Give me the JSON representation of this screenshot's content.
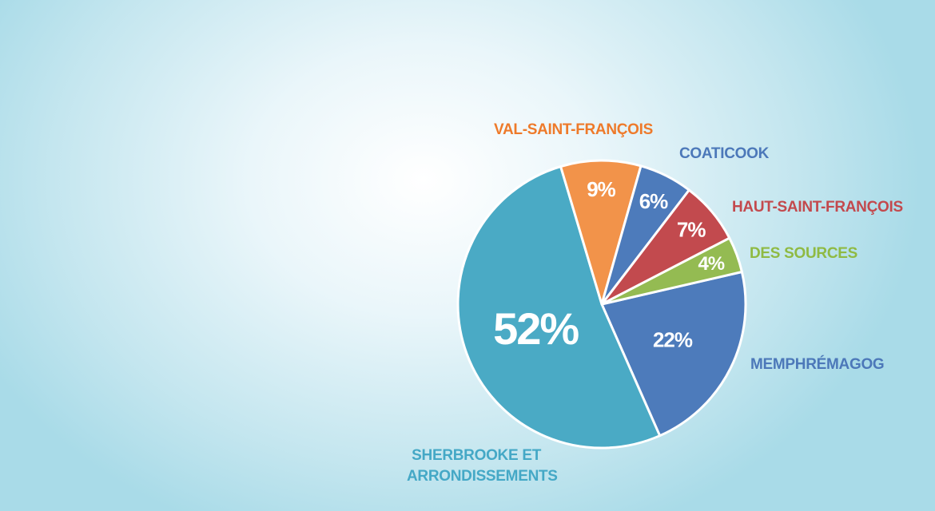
{
  "chart_data": {
    "type": "pie",
    "slices": [
      {
        "label": "MEMPHRÉMAGOG",
        "value": 22,
        "value_label": "22%",
        "color": "#4d7bbb"
      },
      {
        "label_lines": [
          "SHERBROOKE ET",
          "ARRONDISSEMENTS"
        ],
        "value": 52,
        "value_label": "52%",
        "color": "#4aaac5"
      },
      {
        "label": "VAL-SAINT-FRANÇOIS",
        "value": 9,
        "value_label": "9%",
        "color": "#f2934a"
      },
      {
        "label": "COATICOOK",
        "value": 6,
        "value_label": "6%",
        "color": "#4d7bbb"
      },
      {
        "label": "HAUT-SAINT-FRANÇOIS",
        "value": 7,
        "value_label": "7%",
        "color": "#c24a4e"
      },
      {
        "label": "DES SOURCES",
        "value": 4,
        "value_label": "4%",
        "color": "#94bb52"
      }
    ]
  }
}
